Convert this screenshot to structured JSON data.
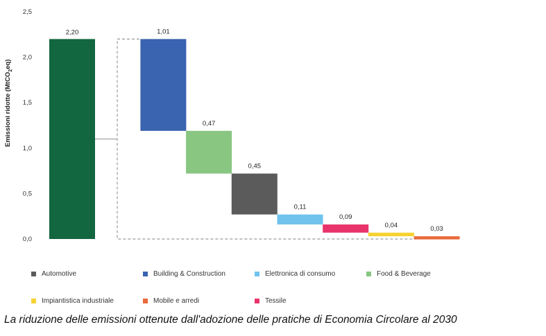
{
  "chart_data": {
    "type": "bar",
    "subtype": "waterfall",
    "ylabel_main": "Emissioni ridotte (MtCO",
    "ylabel_sub": "2",
    "ylabel_end": "eq)",
    "ylim": [
      0,
      2.5
    ],
    "yticks": [
      "0,0",
      "0,5",
      "1,0",
      "1,5",
      "2,0",
      "2,5"
    ],
    "ytick_values": [
      0,
      0.5,
      1.0,
      1.5,
      2.0,
      2.5
    ],
    "total": {
      "value": 2.2,
      "label": "2,20",
      "color": "#126640"
    },
    "steps": [
      {
        "value": 1.01,
        "label": "1,01",
        "color": "#3a63b0"
      },
      {
        "value": 0.47,
        "label": "0,47",
        "color": "#88c682"
      },
      {
        "value": 0.45,
        "label": "0,45",
        "color": "#5b5b5b"
      },
      {
        "value": 0.11,
        "label": "0,11",
        "color": "#6fc3ec"
      },
      {
        "value": 0.09,
        "label": "0,09",
        "color": "#e8346a"
      },
      {
        "value": 0.04,
        "label": "0,04",
        "color": "#f7d234"
      },
      {
        "value": 0.03,
        "label": "0,03",
        "color": "#e96a3c"
      }
    ]
  },
  "legend": [
    {
      "label": "Automotive",
      "color": "#5b5b5b"
    },
    {
      "label": "Building & Construction",
      "color": "#3a63b0"
    },
    {
      "label": "Elettronica di consumo",
      "color": "#6fc3ec"
    },
    {
      "label": "Food & Beverage",
      "color": "#88c682"
    },
    {
      "label": "Impiantistica industriale",
      "color": "#f7d234"
    },
    {
      "label": "Mobile e arredi",
      "color": "#e96a3c"
    },
    {
      "label": "Tessile",
      "color": "#e8346a"
    }
  ],
  "caption": "La riduzione delle emissioni ottenute dall'adozione delle pratiche di Economia Circolare al 2030"
}
